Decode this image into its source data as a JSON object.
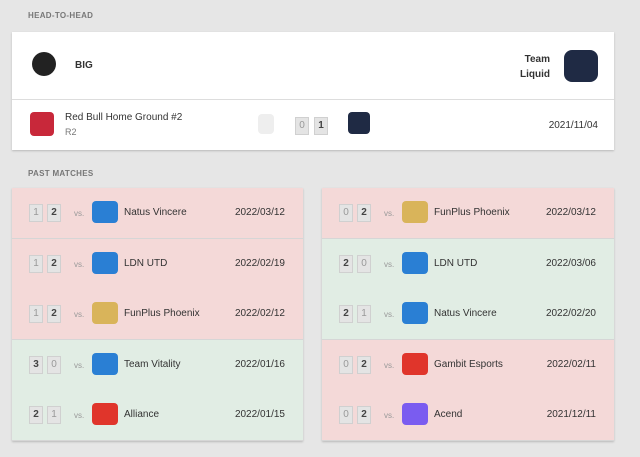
{
  "head_to_head": {
    "title": "HEAD-TO-HEAD",
    "team1": "BIG",
    "team2": "Team Liquid",
    "match": {
      "event": "Red Bull Home Ground #2",
      "round": "R2",
      "score1": 0,
      "score2": 1,
      "date": "2021/11/04"
    }
  },
  "past_matches": {
    "title": "PAST MATCHES",
    "vs_label": "vs.",
    "left": [
      {
        "score1": 1,
        "score2": 2,
        "opponent": "Natus Vincere",
        "date": "2022/03/12",
        "color": "#f4d9d8"
      },
      {
        "score1": 1,
        "score2": 2,
        "opponent": "LDN UTD",
        "date": "2022/02/19",
        "color": "#f4d9d8"
      },
      {
        "score1": 1,
        "score2": 2,
        "opponent": "FunPlus Phoenix",
        "date": "2022/02/12",
        "color": "#f4d9d8"
      },
      {
        "score1": 3,
        "score2": 0,
        "opponent": "Team Vitality",
        "date": "2022/01/16",
        "color": "#e1ede4"
      },
      {
        "score1": 2,
        "score2": 1,
        "opponent": "Alliance",
        "date": "2022/01/15",
        "color": "#e1ede4"
      }
    ],
    "right": [
      {
        "score1": 0,
        "score2": 2,
        "opponent": "FunPlus Phoenix",
        "date": "2022/03/12",
        "color": "#f4d9d8"
      },
      {
        "score1": 2,
        "score2": 0,
        "opponent": "LDN UTD",
        "date": "2022/03/06",
        "color": "#e1ede4"
      },
      {
        "score1": 2,
        "score2": 1,
        "opponent": "Natus Vincere",
        "date": "2022/02/20",
        "color": "#e1ede4"
      },
      {
        "score1": 0,
        "score2": 2,
        "opponent": "Gambit Esports",
        "date": "2022/02/11",
        "color": "#f4d9d8"
      },
      {
        "score1": 0,
        "score2": 2,
        "opponent": "Acend",
        "date": "2021/12/11",
        "color": "#f4d9d8"
      }
    ]
  }
}
